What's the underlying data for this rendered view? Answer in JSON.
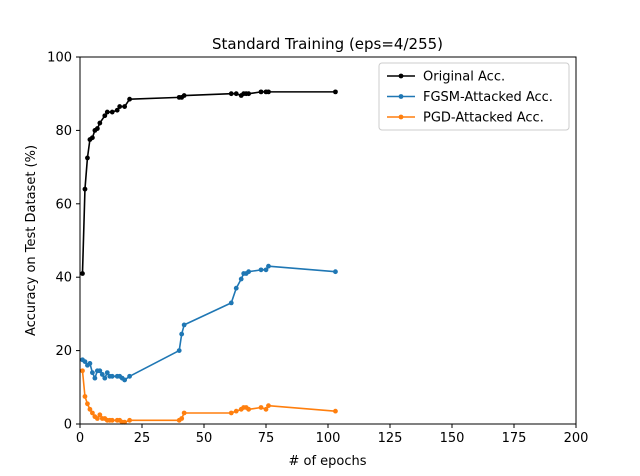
{
  "chart_data": {
    "type": "line",
    "title": "Standard Training (eps=4/255)",
    "xlabel": "# of epochs",
    "ylabel": "Accuracy on Test Dataset (%)",
    "xlim": [
      0,
      200
    ],
    "ylim": [
      0,
      100
    ],
    "xticks": [
      0,
      25,
      50,
      75,
      100,
      125,
      150,
      175,
      200
    ],
    "yticks": [
      0,
      20,
      40,
      60,
      80,
      100
    ],
    "grid": false,
    "legend_position": "top-right",
    "series": [
      {
        "name": "Original Acc.",
        "color": "#000000",
        "x": [
          1,
          2,
          3,
          4,
          5,
          6,
          7,
          8,
          10,
          11,
          13,
          15,
          16,
          18,
          20,
          40,
          41,
          42,
          61,
          63,
          65,
          66,
          67,
          68,
          73,
          75,
          76,
          103
        ],
        "y": [
          41,
          64,
          72.5,
          77.5,
          78,
          80,
          80.5,
          82,
          84,
          85,
          85,
          85.5,
          86.5,
          86.5,
          88.5,
          89,
          89,
          89.5,
          90,
          90,
          89.5,
          90,
          90,
          90,
          90.5,
          90.5,
          90.5,
          90.5
        ]
      },
      {
        "name": "FGSM-Attacked Acc.",
        "color": "#1f77b4",
        "x": [
          1,
          2,
          3,
          4,
          5,
          6,
          7,
          8,
          9,
          10,
          11,
          12,
          13,
          15,
          16,
          17,
          18,
          20,
          40,
          41,
          42,
          61,
          63,
          65,
          66,
          67,
          68,
          73,
          75,
          76,
          103
        ],
        "y": [
          17.5,
          17,
          16,
          16.5,
          14,
          12.5,
          14.5,
          14.5,
          13.5,
          12.5,
          14,
          13,
          13,
          13,
          13,
          12.5,
          12,
          13,
          20,
          24.5,
          27,
          33,
          37,
          39.5,
          41,
          41,
          41.5,
          42,
          42,
          43,
          41.5
        ]
      },
      {
        "name": "PGD-Attacked Acc.",
        "color": "#ff7f0e",
        "x": [
          1,
          2,
          3,
          4,
          5,
          6,
          7,
          8,
          9,
          10,
          11,
          12,
          13,
          15,
          16,
          17,
          18,
          20,
          40,
          41,
          42,
          61,
          63,
          65,
          66,
          67,
          68,
          73,
          75,
          76,
          103
        ],
        "y": [
          14.5,
          7.5,
          5.5,
          4,
          3,
          2,
          1.5,
          2.5,
          1.5,
          1.5,
          1,
          1,
          1,
          1,
          1,
          0.5,
          0.5,
          1,
          1,
          1.5,
          3,
          3,
          3.5,
          4,
          4.5,
          4.5,
          4,
          4.5,
          4,
          5,
          3.5
        ]
      }
    ]
  }
}
